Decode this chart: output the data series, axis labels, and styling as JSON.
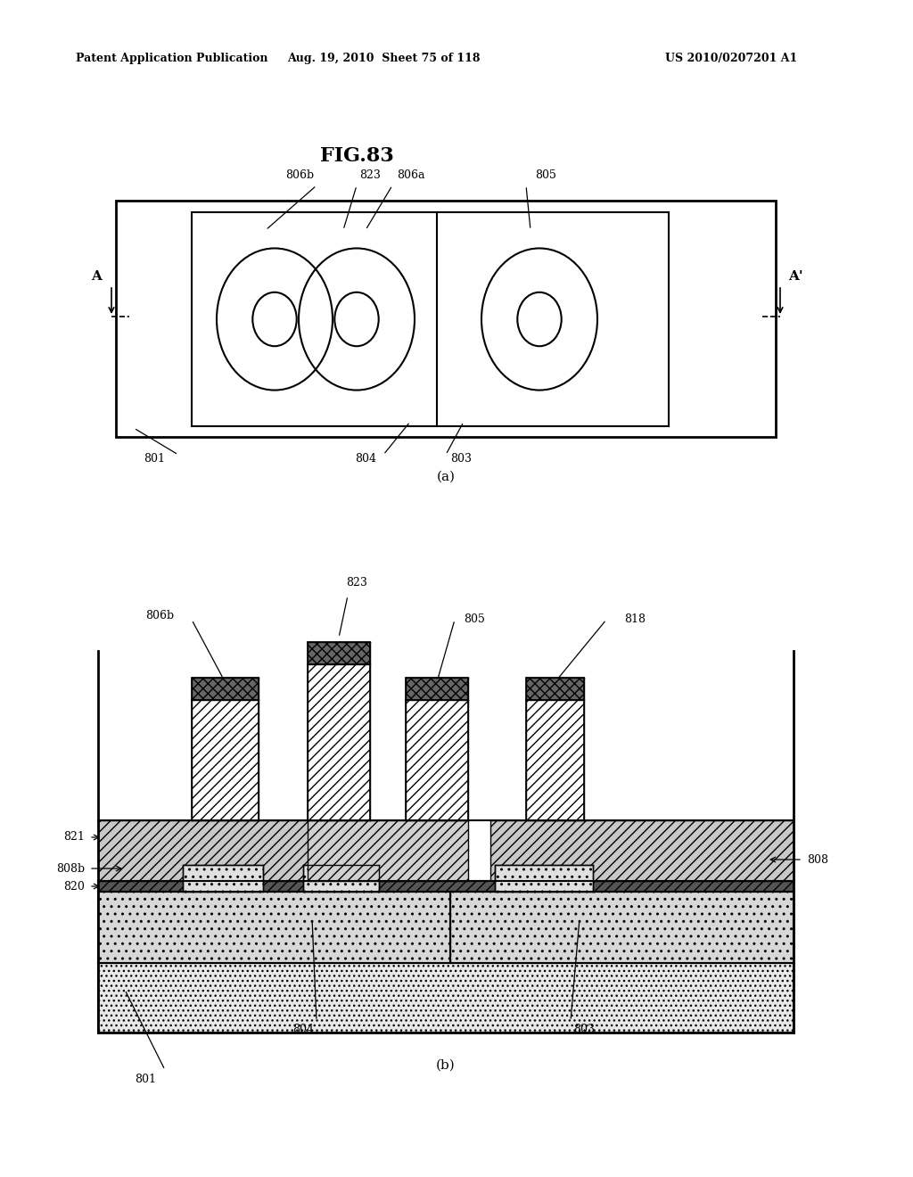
{
  "header_left": "Patent Application Publication",
  "header_mid": "Aug. 19, 2010  Sheet 75 of 118",
  "header_right": "US 2010/0207201 A1",
  "fig_title": "FIG.83",
  "bg_color": "#ffffff",
  "line_color": "#000000"
}
